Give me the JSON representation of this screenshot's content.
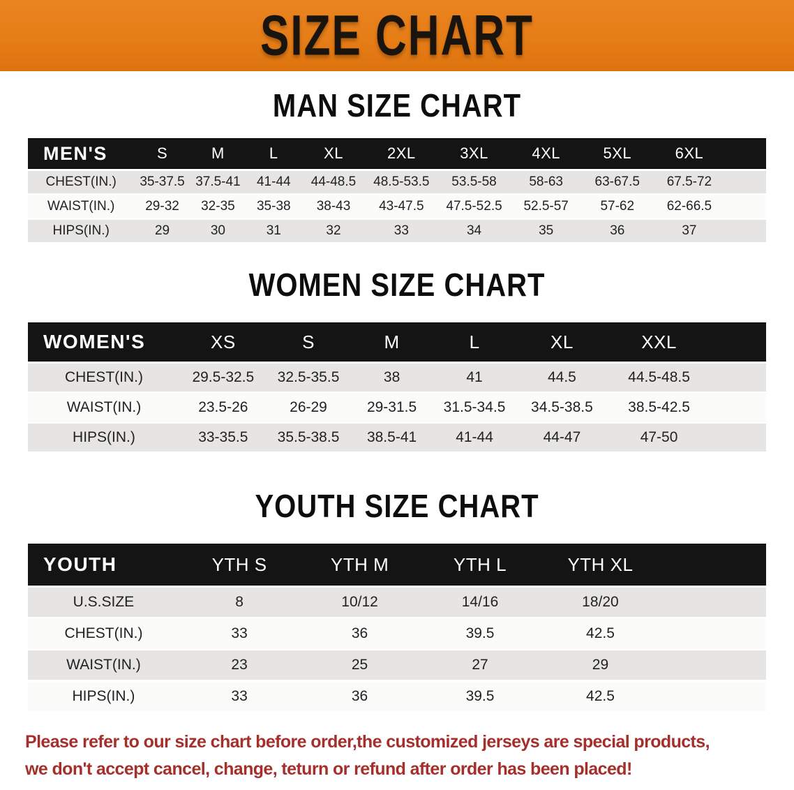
{
  "banner": {
    "title": "SIZE CHART",
    "bg_color": "#E67D17",
    "text_color": "#1A140E"
  },
  "colors": {
    "header_bar_bg": "#141414",
    "header_bar_text": "#FFFFFF",
    "row_shaded_bg": "#E6E5E3",
    "row_plain_bg": "#FBFBFA",
    "disclaimer_text": "#A5302B"
  },
  "sections": [
    {
      "heading": "MAN SIZE CHART",
      "table": {
        "label": "MEN'S",
        "columns": [
          "S",
          "M",
          "L",
          "XL",
          "2XL",
          "3XL",
          "4XL",
          "5XL",
          "6XL"
        ],
        "rows": [
          {
            "label": "CHEST(IN.)",
            "values": [
              "35-37.5",
              "37.5-41",
              "41-44",
              "44-48.5",
              "48.5-53.5",
              "53.5-58",
              "58-63",
              "63-67.5",
              "67.5-72"
            ]
          },
          {
            "label": "WAIST(IN.)",
            "values": [
              "29-32",
              "32-35",
              "35-38",
              "38-43",
              "43-47.5",
              "47.5-52.5",
              "52.5-57",
              "57-62",
              "62-66.5"
            ]
          },
          {
            "label": "HIPS(IN.)",
            "values": [
              "29",
              "30",
              "31",
              "32",
              "33",
              "34",
              "35",
              "36",
              "37"
            ]
          }
        ]
      }
    },
    {
      "heading": "WOMEN SIZE CHART",
      "table": {
        "label": "WOMEN'S",
        "columns": [
          "XS",
          "S",
          "M",
          "L",
          "XL",
          "XXL"
        ],
        "rows": [
          {
            "label": "CHEST(IN.)",
            "values": [
              "29.5-32.5",
              "32.5-35.5",
              "38",
              "41",
              "44.5",
              "44.5-48.5"
            ]
          },
          {
            "label": "WAIST(IN.)",
            "values": [
              "23.5-26",
              "26-29",
              "29-31.5",
              "31.5-34.5",
              "34.5-38.5",
              "38.5-42.5"
            ]
          },
          {
            "label": "HIPS(IN.)",
            "values": [
              "33-35.5",
              "35.5-38.5",
              "38.5-41",
              "41-44",
              "44-47",
              "47-50"
            ]
          }
        ]
      }
    },
    {
      "heading": "YOUTH SIZE CHART",
      "table": {
        "label": "YOUTH",
        "columns": [
          "YTH S",
          "YTH M",
          "YTH L",
          "YTH XL"
        ],
        "rows": [
          {
            "label": "U.S.SIZE",
            "values": [
              "8",
              "10/12",
              "14/16",
              "18/20"
            ]
          },
          {
            "label": "CHEST(IN.)",
            "values": [
              "33",
              "36",
              "39.5",
              "42.5"
            ]
          },
          {
            "label": "WAIST(IN.)",
            "values": [
              "23",
              "25",
              "27",
              "29"
            ]
          },
          {
            "label": "HIPS(IN.)",
            "values": [
              "33",
              "36",
              "39.5",
              "42.5"
            ]
          }
        ]
      }
    }
  ],
  "disclaimer": {
    "line1": "Please refer to our size chart before order,the customized jerseys are special products,",
    "line2": "we don't accept cancel, change, teturn or refund after order has been placed!"
  },
  "chart_data": [
    {
      "type": "table",
      "title": "MAN SIZE CHART",
      "columns": [
        "MEN'S",
        "S",
        "M",
        "L",
        "XL",
        "2XL",
        "3XL",
        "4XL",
        "5XL",
        "6XL"
      ],
      "rows": [
        [
          "CHEST(IN.)",
          "35-37.5",
          "37.5-41",
          "41-44",
          "44-48.5",
          "48.5-53.5",
          "53.5-58",
          "58-63",
          "63-67.5",
          "67.5-72"
        ],
        [
          "WAIST(IN.)",
          "29-32",
          "32-35",
          "35-38",
          "38-43",
          "43-47.5",
          "47.5-52.5",
          "52.5-57",
          "57-62",
          "62-66.5"
        ],
        [
          "HIPS(IN.)",
          "29",
          "30",
          "31",
          "32",
          "33",
          "34",
          "35",
          "36",
          "37"
        ]
      ]
    },
    {
      "type": "table",
      "title": "WOMEN SIZE CHART",
      "columns": [
        "WOMEN'S",
        "XS",
        "S",
        "M",
        "L",
        "XL",
        "XXL"
      ],
      "rows": [
        [
          "CHEST(IN.)",
          "29.5-32.5",
          "32.5-35.5",
          "38",
          "41",
          "44.5",
          "44.5-48.5"
        ],
        [
          "WAIST(IN.)",
          "23.5-26",
          "26-29",
          "29-31.5",
          "31.5-34.5",
          "34.5-38.5",
          "38.5-42.5"
        ],
        [
          "HIPS(IN.)",
          "33-35.5",
          "35.5-38.5",
          "38.5-41",
          "41-44",
          "44-47",
          "47-50"
        ]
      ]
    },
    {
      "type": "table",
      "title": "YOUTH SIZE CHART",
      "columns": [
        "YOUTH",
        "YTH S",
        "YTH M",
        "YTH L",
        "YTH XL"
      ],
      "rows": [
        [
          "U.S.SIZE",
          "8",
          "10/12",
          "14/16",
          "18/20"
        ],
        [
          "CHEST(IN.)",
          "33",
          "36",
          "39.5",
          "42.5"
        ],
        [
          "WAIST(IN.)",
          "23",
          "25",
          "27",
          "29"
        ],
        [
          "HIPS(IN.)",
          "33",
          "36",
          "39.5",
          "42.5"
        ]
      ]
    }
  ]
}
